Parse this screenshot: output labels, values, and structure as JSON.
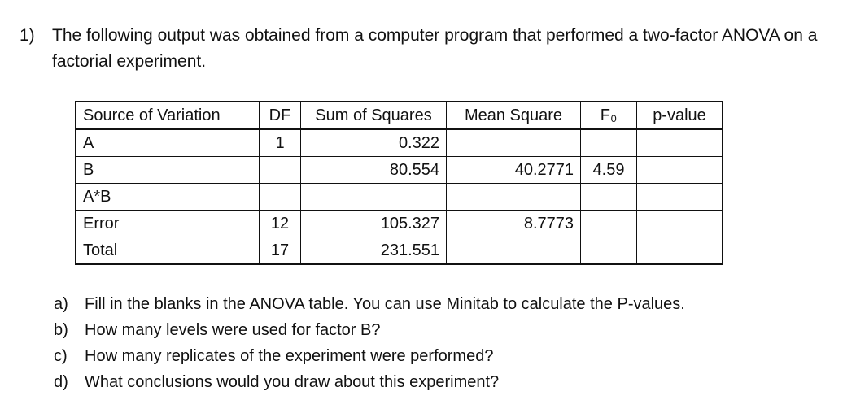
{
  "problem": {
    "number": "1)",
    "text": "The following output was obtained from a computer program that performed a two-factor ANOVA on a factorial experiment."
  },
  "table": {
    "headers": [
      "Source of Variation",
      "DF",
      "Sum of Squares",
      "Mean Square",
      "F₀",
      "p-value"
    ],
    "rows": [
      [
        "A",
        "1",
        "0.322",
        "",
        "",
        ""
      ],
      [
        "B",
        "",
        "80.554",
        "40.2771",
        "4.59",
        ""
      ],
      [
        "A*B",
        "",
        "",
        "",
        "",
        ""
      ],
      [
        "Error",
        "12",
        "105.327",
        "8.7773",
        "",
        ""
      ],
      [
        "Total",
        "17",
        "231.551",
        "",
        "",
        ""
      ]
    ]
  },
  "questions": [
    {
      "label": "a)",
      "text": "Fill in the blanks in the ANOVA table. You can use Minitab to calculate the P-values."
    },
    {
      "label": "b)",
      "text": "How many levels were used for factor B?"
    },
    {
      "label": "c)",
      "text": "How many replicates of the experiment were performed?"
    },
    {
      "label": "d)",
      "text": "What conclusions would you draw about this experiment?"
    }
  ]
}
